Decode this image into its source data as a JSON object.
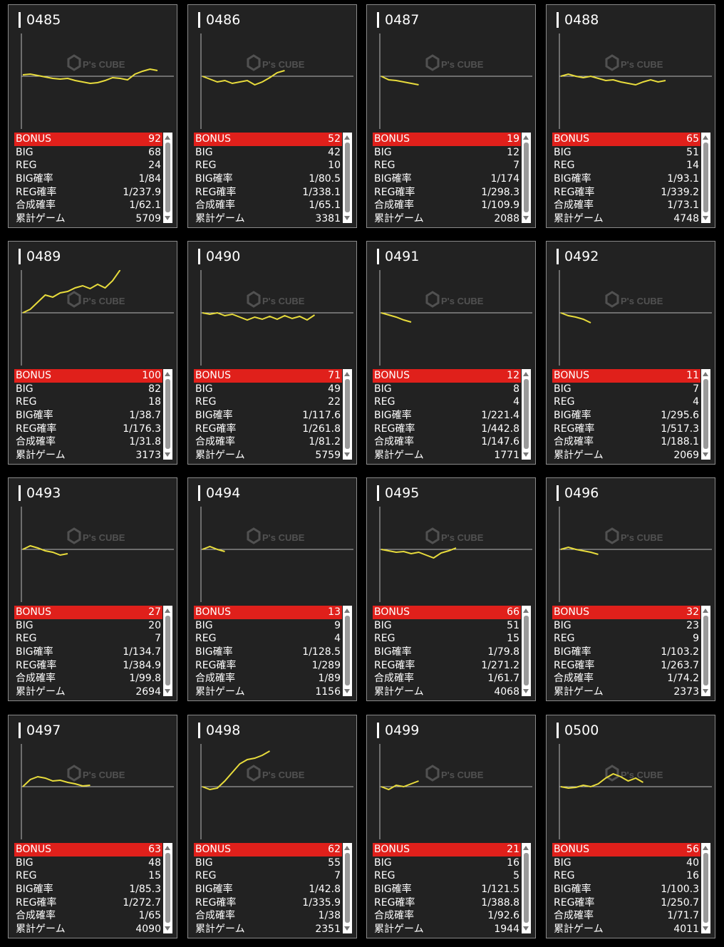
{
  "labels": {
    "bonus": "BONUS",
    "big": "BIG",
    "reg": "REG",
    "big_rate": "BIG確率",
    "reg_rate": "REG確率",
    "total_rate": "合成確率",
    "games": "累計ゲーム"
  },
  "watermark": {
    "brand": "P's CUBE"
  },
  "colors": {
    "bonus_bg": "#e0201b",
    "graph_line": "#e8dc3c",
    "card_bg": "#222222",
    "page_bg": "#000000"
  },
  "machines": [
    {
      "id": "0485",
      "bonus": "92",
      "big": "68",
      "reg": "24",
      "big_rate": "1/84",
      "reg_rate": "1/237.9",
      "total_rate": "1/62.1",
      "games": "5709",
      "trend": [
        2,
        3,
        1,
        -1,
        -3,
        -4,
        -3,
        -6,
        -8,
        -10,
        -9,
        -6,
        -2,
        -3,
        -5,
        3,
        7,
        10,
        8
      ]
    },
    {
      "id": "0486",
      "bonus": "52",
      "big": "42",
      "reg": "10",
      "big_rate": "1/80.5",
      "reg_rate": "1/338.1",
      "total_rate": "1/65.1",
      "games": "3381",
      "trend": [
        0,
        -4,
        -8,
        -6,
        -10,
        -8,
        -6,
        -12,
        -8,
        -2,
        5,
        8
      ]
    },
    {
      "id": "0487",
      "bonus": "19",
      "big": "12",
      "reg": "7",
      "big_rate": "1/174",
      "reg_rate": "1/298.3",
      "total_rate": "1/109.9",
      "games": "2088",
      "trend": [
        0,
        -5,
        -6,
        -8,
        -10,
        -12
      ]
    },
    {
      "id": "0488",
      "bonus": "65",
      "big": "51",
      "reg": "14",
      "big_rate": "1/93.1",
      "reg_rate": "1/339.2",
      "total_rate": "1/73.1",
      "games": "4748",
      "trend": [
        0,
        3,
        0,
        -2,
        0,
        -3,
        -6,
        -5,
        -8,
        -10,
        -12,
        -8,
        -5,
        -8,
        -6
      ]
    },
    {
      "id": "0489",
      "bonus": "100",
      "big": "82",
      "reg": "18",
      "big_rate": "1/38.7",
      "reg_rate": "1/176.3",
      "total_rate": "1/31.8",
      "games": "3173",
      "trend": [
        0,
        5,
        15,
        25,
        22,
        28,
        30,
        35,
        38,
        34,
        40,
        35,
        45,
        60
      ]
    },
    {
      "id": "0490",
      "bonus": "71",
      "big": "49",
      "reg": "22",
      "big_rate": "1/117.6",
      "reg_rate": "1/261.8",
      "total_rate": "1/81.2",
      "games": "5759",
      "trend": [
        0,
        -2,
        0,
        -4,
        -2,
        -6,
        -10,
        -6,
        -9,
        -5,
        -9,
        -4,
        -8,
        -5,
        -10,
        -3
      ]
    },
    {
      "id": "0491",
      "bonus": "12",
      "big": "8",
      "reg": "4",
      "big_rate": "1/221.4",
      "reg_rate": "1/442.8",
      "total_rate": "1/147.6",
      "games": "1771",
      "trend": [
        0,
        -3,
        -6,
        -10,
        -13
      ]
    },
    {
      "id": "0492",
      "bonus": "11",
      "big": "7",
      "reg": "4",
      "big_rate": "1/295.6",
      "reg_rate": "1/517.3",
      "total_rate": "1/188.1",
      "games": "2069",
      "trend": [
        0,
        -4,
        -6,
        -9,
        -14
      ]
    },
    {
      "id": "0493",
      "bonus": "27",
      "big": "20",
      "reg": "7",
      "big_rate": "1/134.7",
      "reg_rate": "1/384.9",
      "total_rate": "1/99.8",
      "games": "2694",
      "trend": [
        0,
        5,
        2,
        -2,
        -4,
        -8,
        -6
      ]
    },
    {
      "id": "0494",
      "bonus": "13",
      "big": "9",
      "reg": "4",
      "big_rate": "1/128.5",
      "reg_rate": "1/289",
      "total_rate": "1/89",
      "games": "1156",
      "trend": [
        0,
        4,
        0,
        -3
      ]
    },
    {
      "id": "0495",
      "bonus": "66",
      "big": "51",
      "reg": "15",
      "big_rate": "1/79.8",
      "reg_rate": "1/271.2",
      "total_rate": "1/61.7",
      "games": "4068",
      "trend": [
        0,
        -2,
        -4,
        -3,
        -6,
        -4,
        -8,
        -12,
        -5,
        -2,
        2
      ]
    },
    {
      "id": "0496",
      "bonus": "32",
      "big": "23",
      "reg": "9",
      "big_rate": "1/103.2",
      "reg_rate": "1/263.7",
      "total_rate": "1/74.2",
      "games": "2373",
      "trend": [
        0,
        3,
        0,
        -2,
        -4,
        -7
      ]
    },
    {
      "id": "0497",
      "bonus": "63",
      "big": "48",
      "reg": "15",
      "big_rate": "1/85.3",
      "reg_rate": "1/272.7",
      "total_rate": "1/65",
      "games": "4090",
      "trend": [
        0,
        10,
        14,
        12,
        8,
        9,
        6,
        4,
        1,
        2
      ]
    },
    {
      "id": "0498",
      "bonus": "62",
      "big": "55",
      "reg": "7",
      "big_rate": "1/42.8",
      "reg_rate": "1/335.9",
      "total_rate": "1/38",
      "games": "2351",
      "trend": [
        0,
        -4,
        -2,
        8,
        20,
        32,
        38,
        40,
        44,
        50
      ]
    },
    {
      "id": "0499",
      "bonus": "21",
      "big": "16",
      "reg": "5",
      "big_rate": "1/121.5",
      "reg_rate": "1/388.8",
      "total_rate": "1/92.6",
      "games": "1944",
      "trend": [
        0,
        -4,
        2,
        0,
        4,
        8
      ]
    },
    {
      "id": "0500",
      "bonus": "56",
      "big": "40",
      "reg": "16",
      "big_rate": "1/100.3",
      "reg_rate": "1/250.7",
      "total_rate": "1/71.7",
      "games": "4011",
      "trend": [
        0,
        -2,
        -1,
        2,
        0,
        4,
        12,
        18,
        14,
        8,
        12,
        6
      ]
    }
  ]
}
